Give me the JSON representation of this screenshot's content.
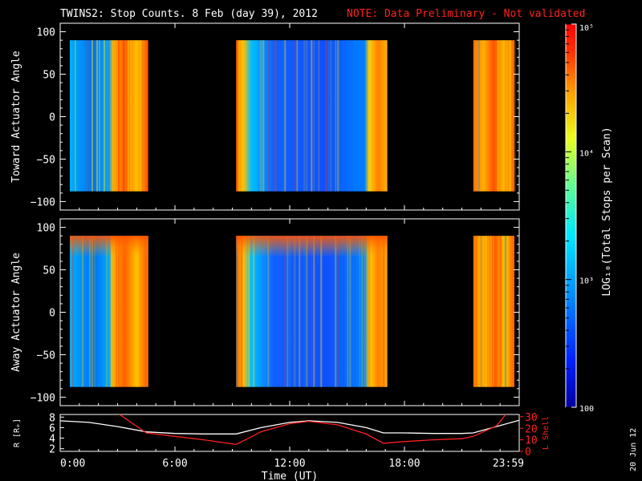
{
  "header": {
    "title": "TWINS2: Stop Counts.  8 Feb (day  39), 2012",
    "note": "NOTE: Data Preliminary - Not validated"
  },
  "stamp": "20 Jun 12",
  "colors": {
    "background": "#000000",
    "note_red": "#ff2020",
    "r_line": "#ffffff",
    "lshell_line": "#ff2020"
  },
  "chart_data": [
    {
      "type": "heatmap",
      "ylabel": "Toward Actuator Angle",
      "ylim": [
        -110,
        110
      ],
      "y_ticks": [
        "100",
        "50",
        "0",
        "−50",
        "−100"
      ],
      "data_extent_y": [
        -88,
        90
      ],
      "data_blocks_hours": [
        [
          0,
          4.6
        ],
        [
          9.2,
          16.6
        ],
        [
          21.6,
          24
        ]
      ]
    },
    {
      "type": "heatmap",
      "ylabel": "Away Actuator Angle",
      "ylim": [
        -110,
        110
      ],
      "y_ticks": [
        "100",
        "50",
        "0",
        "−50",
        "−100"
      ],
      "data_extent_y": [
        -88,
        90
      ],
      "data_blocks_hours": [
        [
          0,
          4.6
        ],
        [
          9.2,
          16.6
        ],
        [
          21.6,
          24
        ]
      ]
    },
    {
      "type": "line",
      "xlabel": "Time (UT)",
      "x_ticks": [
        "0:00",
        "6:00",
        "12:00",
        "18:00",
        "23:59"
      ],
      "xlim": [
        0,
        24
      ],
      "ylabel_left": "R [Rₑ]",
      "ylim_left": [
        1.5,
        8.5
      ],
      "y_ticks_left": [
        "8",
        "6",
        "4",
        "2"
      ],
      "ylabel_right": "L Shell",
      "ylim_right": [
        0,
        32
      ],
      "y_ticks_right": [
        "30",
        "20",
        "10",
        "0"
      ],
      "series": [
        {
          "axis": "left",
          "color": "#ffffff",
          "x": [
            0,
            1.5,
            3,
            4.5,
            6,
            7.5,
            9.2,
            10.5,
            12,
            13,
            14.5,
            16,
            16.9,
            18,
            19.5,
            21,
            21.6,
            22.8,
            24
          ],
          "y": [
            7.3,
            7.0,
            6.2,
            5.2,
            4.9,
            4.8,
            4.8,
            6.0,
            7.0,
            7.3,
            7.0,
            6.0,
            5.0,
            5.0,
            4.9,
            4.9,
            5.0,
            6.2,
            7.4
          ]
        },
        {
          "axis": "right",
          "color": "#ff2020",
          "x": [
            3.1,
            4.5,
            6,
            7.5,
            9.2,
            10.5,
            12,
            13,
            14.5,
            16,
            16.9,
            18,
            19.5,
            21,
            21.6,
            22.8,
            23.3
          ],
          "y": [
            32,
            16,
            13,
            10,
            6,
            17,
            24,
            26,
            23,
            15,
            7,
            8.5,
            10,
            11,
            13,
            22,
            32
          ]
        }
      ]
    },
    {
      "type": "heatmap",
      "ylabel": "LOG₁₀(Total Stops per Scan)",
      "colorbar_ticks": [
        "10⁵",
        "10⁴",
        "10³",
        "100"
      ],
      "zlim": [
        100,
        100000
      ],
      "log_scale": true
    }
  ]
}
